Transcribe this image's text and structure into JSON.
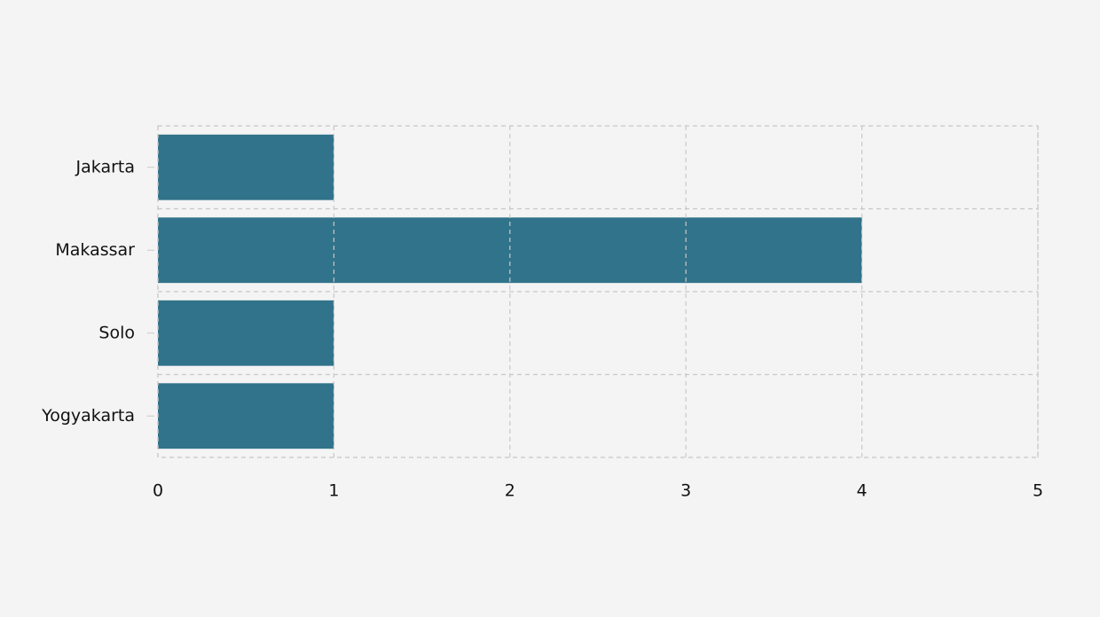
{
  "chart_data": {
    "type": "barh",
    "categories": [
      "Jakarta",
      "Makassar",
      "Solo",
      "Yogyakarta"
    ],
    "values": [
      1,
      4,
      1,
      1
    ],
    "color": "#30738a",
    "xlim": [
      0,
      5
    ],
    "xticks": [
      0,
      1,
      2,
      3,
      4,
      5
    ],
    "grid": true
  }
}
